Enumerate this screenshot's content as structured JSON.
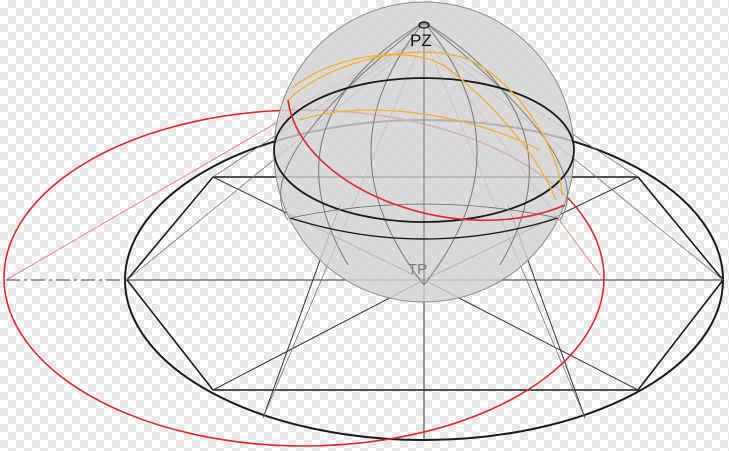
{
  "diagram": {
    "labels": {
      "zenith": "PZ",
      "tangent_point": "TP"
    },
    "colors": {
      "plane": "#1a1a1a",
      "thin_lines": "#333333",
      "sphere_fill": "#d3d3d3",
      "sphere_stroke": "#8a8a8a",
      "meridians": "#7a7a7a",
      "projection_circle": "#e0262b",
      "great_circle": "#f0b030",
      "tp_label": "#7a7a7a"
    }
  }
}
